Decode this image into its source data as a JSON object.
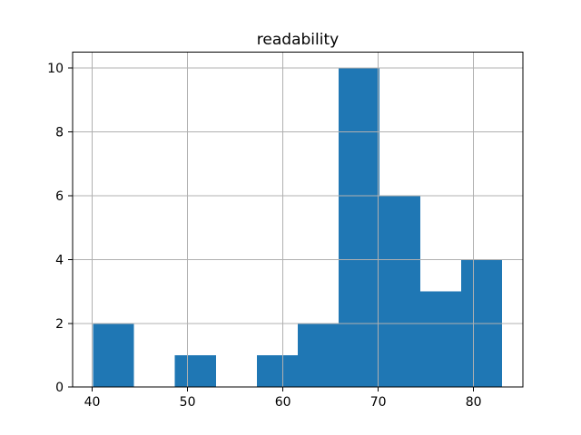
{
  "chart_data": {
    "type": "bar",
    "subtype": "histogram",
    "title": "readability",
    "xlabel": "",
    "ylabel": "",
    "bin_edges": [
      40.1,
      44.39,
      48.68,
      52.97,
      57.26,
      61.55,
      65.84,
      70.13,
      74.42,
      78.71,
      83.0
    ],
    "counts": [
      2,
      0,
      1,
      0,
      1,
      2,
      10,
      6,
      3,
      4
    ],
    "xticks": [
      40,
      50,
      60,
      70,
      80
    ],
    "yticks": [
      0,
      2,
      4,
      6,
      8,
      10
    ],
    "xlim": [
      37.95,
      85.17
    ],
    "ylim": [
      0,
      10.5
    ],
    "grid": true,
    "grid_above_bars": true,
    "legend": false,
    "bar_color": "#1f77b4",
    "grid_color": "#b0b0b0",
    "spine_color": "#000000",
    "tick_color": "#000000",
    "text_color": "#000000",
    "background_color": "#ffffff"
  }
}
